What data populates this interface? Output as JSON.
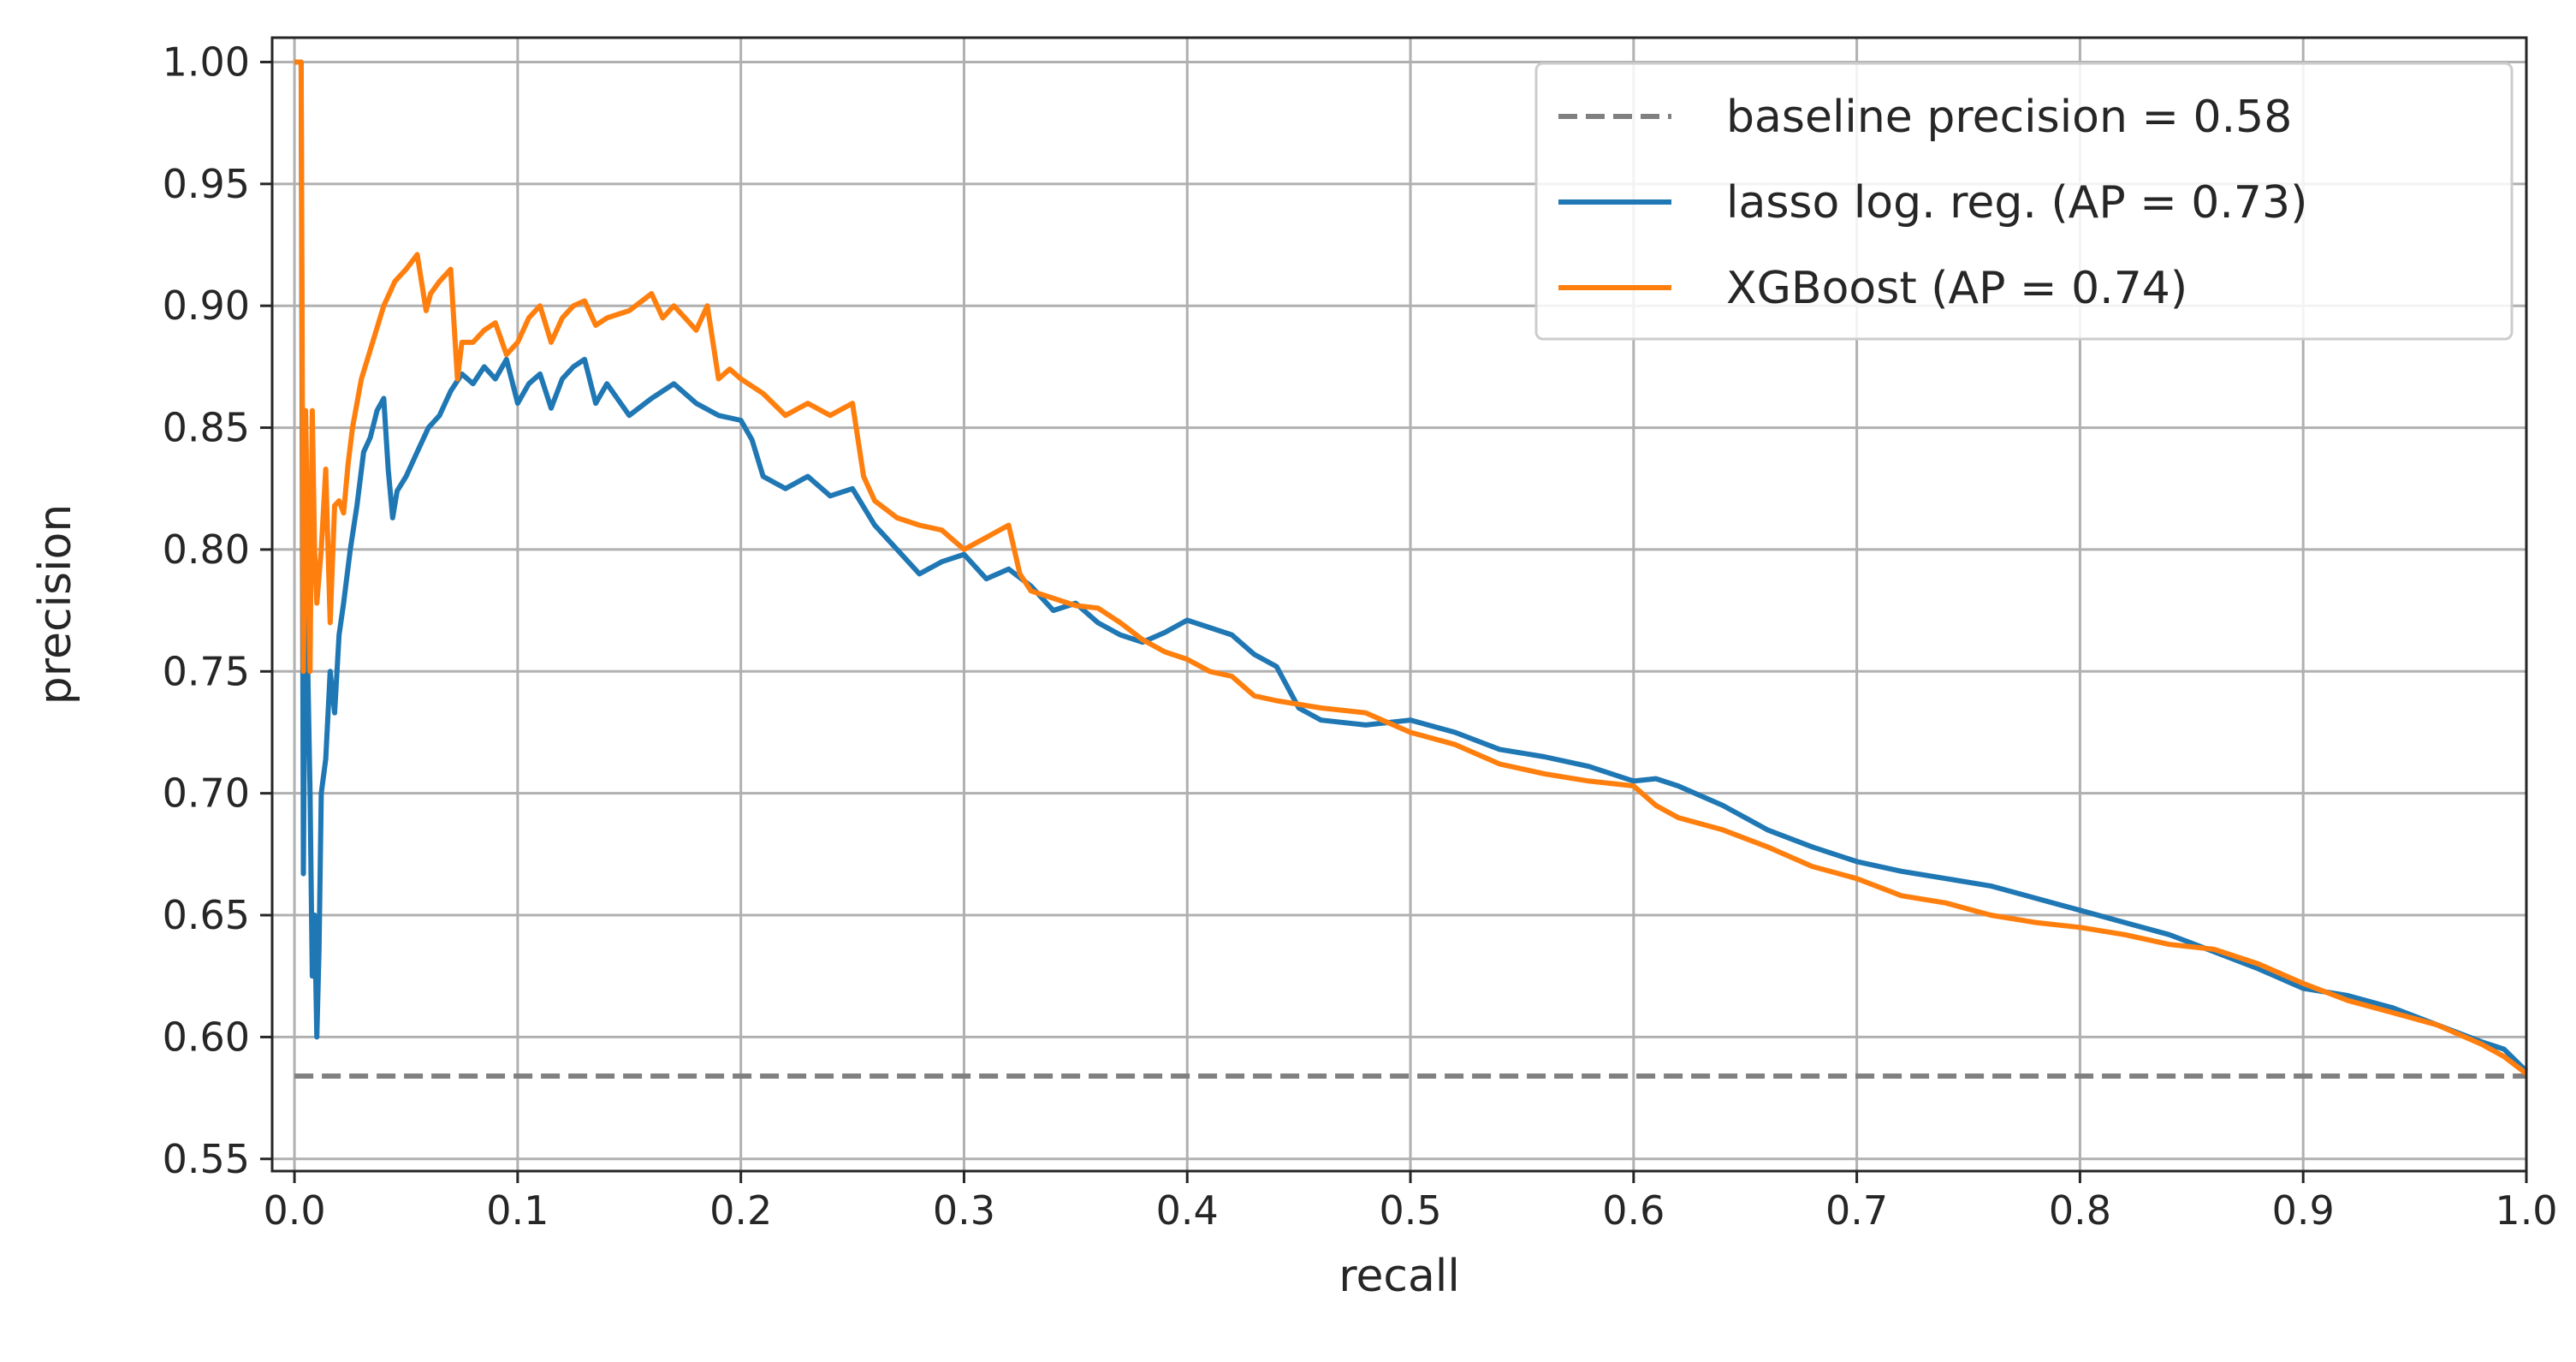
{
  "chart_data": {
    "type": "line",
    "title": "",
    "xlabel": "recall",
    "ylabel": "precision",
    "xlim": [
      -0.01,
      1.0
    ],
    "ylim": [
      0.545,
      1.01
    ],
    "grid": true,
    "legend_position": "top-right",
    "x_ticks": [
      "0.0",
      "0.1",
      "0.2",
      "0.3",
      "0.4",
      "0.5",
      "0.6",
      "0.7",
      "0.8",
      "0.9",
      "1.0"
    ],
    "x_tick_values": [
      0.0,
      0.1,
      0.2,
      0.3,
      0.4,
      0.5,
      0.6,
      0.7,
      0.8,
      0.9,
      1.0
    ],
    "y_ticks": [
      "0.55",
      "0.60",
      "0.65",
      "0.70",
      "0.75",
      "0.80",
      "0.85",
      "0.90",
      "0.95",
      "1.00"
    ],
    "y_tick_values": [
      0.55,
      0.6,
      0.65,
      0.7,
      0.75,
      0.8,
      0.85,
      0.9,
      0.95,
      1.0
    ],
    "series": [
      {
        "name": "baseline precision = 0.58",
        "color": "#808080",
        "style": "dashed",
        "x": [
          0.0,
          1.0
        ],
        "y": [
          0.584,
          0.584
        ]
      },
      {
        "name": "lasso log. reg. (AP = 0.73)",
        "color": "#1f77b4",
        "style": "solid",
        "x": [
          0.0,
          0.003,
          0.004,
          0.005,
          0.006,
          0.007,
          0.008,
          0.009,
          0.01,
          0.011,
          0.012,
          0.014,
          0.016,
          0.018,
          0.02,
          0.022,
          0.025,
          0.028,
          0.031,
          0.034,
          0.037,
          0.04,
          0.042,
          0.044,
          0.046,
          0.05,
          0.055,
          0.06,
          0.065,
          0.07,
          0.075,
          0.08,
          0.085,
          0.09,
          0.095,
          0.1,
          0.105,
          0.11,
          0.115,
          0.12,
          0.125,
          0.13,
          0.135,
          0.14,
          0.15,
          0.16,
          0.17,
          0.18,
          0.19,
          0.2,
          0.205,
          0.21,
          0.22,
          0.23,
          0.24,
          0.25,
          0.26,
          0.27,
          0.28,
          0.29,
          0.3,
          0.31,
          0.32,
          0.33,
          0.34,
          0.35,
          0.36,
          0.37,
          0.38,
          0.39,
          0.4,
          0.41,
          0.42,
          0.43,
          0.44,
          0.45,
          0.46,
          0.48,
          0.5,
          0.52,
          0.54,
          0.56,
          0.58,
          0.6,
          0.61,
          0.62,
          0.64,
          0.66,
          0.68,
          0.7,
          0.72,
          0.74,
          0.76,
          0.78,
          0.8,
          0.82,
          0.84,
          0.86,
          0.88,
          0.9,
          0.92,
          0.94,
          0.96,
          0.98,
          0.99,
          1.0
        ],
        "y": [
          1.0,
          1.0,
          0.667,
          0.8,
          0.75,
          0.7,
          0.625,
          0.65,
          0.6,
          0.636,
          0.7,
          0.714,
          0.75,
          0.733,
          0.765,
          0.778,
          0.8,
          0.818,
          0.84,
          0.846,
          0.857,
          0.862,
          0.833,
          0.813,
          0.824,
          0.83,
          0.84,
          0.85,
          0.855,
          0.865,
          0.872,
          0.868,
          0.875,
          0.87,
          0.878,
          0.86,
          0.868,
          0.872,
          0.858,
          0.87,
          0.875,
          0.878,
          0.86,
          0.868,
          0.855,
          0.862,
          0.868,
          0.86,
          0.855,
          0.853,
          0.845,
          0.83,
          0.825,
          0.83,
          0.822,
          0.825,
          0.81,
          0.8,
          0.79,
          0.795,
          0.798,
          0.788,
          0.792,
          0.785,
          0.775,
          0.778,
          0.77,
          0.765,
          0.762,
          0.766,
          0.771,
          0.768,
          0.765,
          0.757,
          0.752,
          0.735,
          0.73,
          0.728,
          0.73,
          0.725,
          0.718,
          0.715,
          0.711,
          0.705,
          0.706,
          0.703,
          0.695,
          0.685,
          0.678,
          0.672,
          0.668,
          0.665,
          0.662,
          0.657,
          0.652,
          0.647,
          0.642,
          0.635,
          0.628,
          0.62,
          0.617,
          0.612,
          0.605,
          0.598,
          0.595,
          0.586
        ]
      },
      {
        "name": "XGBoost (AP = 0.74)",
        "color": "#ff7f0e",
        "style": "solid",
        "x": [
          0.0,
          0.003,
          0.004,
          0.005,
          0.006,
          0.007,
          0.008,
          0.009,
          0.01,
          0.012,
          0.014,
          0.016,
          0.018,
          0.02,
          0.022,
          0.024,
          0.026,
          0.03,
          0.035,
          0.04,
          0.045,
          0.05,
          0.055,
          0.059,
          0.061,
          0.065,
          0.07,
          0.073,
          0.075,
          0.08,
          0.085,
          0.09,
          0.095,
          0.1,
          0.105,
          0.11,
          0.115,
          0.12,
          0.125,
          0.13,
          0.135,
          0.14,
          0.15,
          0.16,
          0.165,
          0.17,
          0.175,
          0.18,
          0.185,
          0.19,
          0.195,
          0.2,
          0.21,
          0.22,
          0.23,
          0.24,
          0.25,
          0.255,
          0.26,
          0.27,
          0.28,
          0.29,
          0.3,
          0.31,
          0.32,
          0.325,
          0.33,
          0.34,
          0.35,
          0.36,
          0.37,
          0.38,
          0.39,
          0.4,
          0.41,
          0.42,
          0.43,
          0.44,
          0.46,
          0.48,
          0.5,
          0.52,
          0.54,
          0.56,
          0.58,
          0.6,
          0.61,
          0.62,
          0.64,
          0.66,
          0.68,
          0.7,
          0.72,
          0.74,
          0.76,
          0.78,
          0.8,
          0.82,
          0.84,
          0.86,
          0.88,
          0.9,
          0.92,
          0.94,
          0.96,
          0.98,
          0.99,
          1.0
        ],
        "y": [
          1.0,
          1.0,
          0.75,
          0.857,
          0.8,
          0.75,
          0.857,
          0.8,
          0.778,
          0.8,
          0.833,
          0.77,
          0.818,
          0.82,
          0.815,
          0.835,
          0.85,
          0.87,
          0.885,
          0.9,
          0.91,
          0.915,
          0.921,
          0.898,
          0.905,
          0.91,
          0.915,
          0.87,
          0.885,
          0.885,
          0.89,
          0.893,
          0.88,
          0.885,
          0.895,
          0.9,
          0.885,
          0.895,
          0.9,
          0.902,
          0.892,
          0.895,
          0.898,
          0.905,
          0.895,
          0.9,
          0.895,
          0.89,
          0.9,
          0.87,
          0.874,
          0.87,
          0.864,
          0.855,
          0.86,
          0.855,
          0.86,
          0.83,
          0.82,
          0.813,
          0.81,
          0.808,
          0.8,
          0.805,
          0.81,
          0.79,
          0.783,
          0.78,
          0.777,
          0.776,
          0.77,
          0.763,
          0.758,
          0.755,
          0.75,
          0.748,
          0.74,
          0.738,
          0.735,
          0.733,
          0.725,
          0.72,
          0.712,
          0.708,
          0.705,
          0.703,
          0.695,
          0.69,
          0.685,
          0.678,
          0.67,
          0.665,
          0.658,
          0.655,
          0.65,
          0.647,
          0.645,
          0.642,
          0.638,
          0.636,
          0.63,
          0.622,
          0.615,
          0.61,
          0.605,
          0.597,
          0.592,
          0.585
        ]
      }
    ]
  }
}
